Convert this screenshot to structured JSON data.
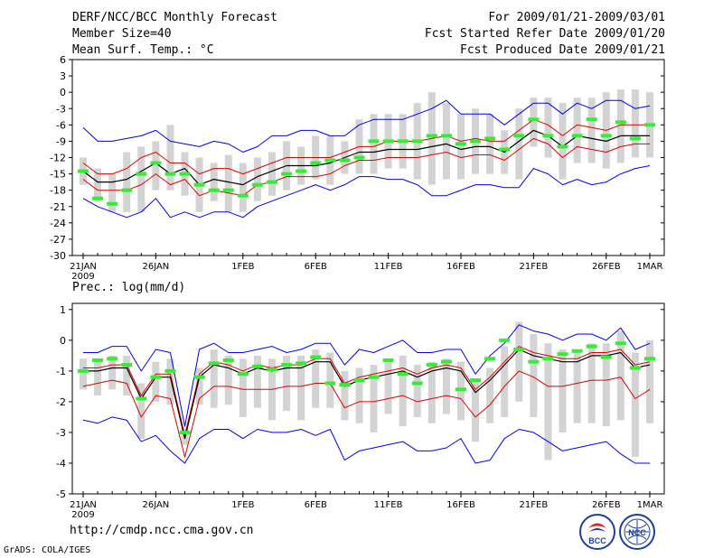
{
  "header": {
    "title": "DERF/NCC/BCC Monthly Forecast",
    "member_size": "Member Size=40",
    "variable": "Mean Surf. Temp.: °C",
    "period": "For 2009/01/21-2009/03/01",
    "start_date": "Fcst Started Refer Date 2009/01/20",
    "produced_date": "Fcst Produced Date 2009/01/21"
  },
  "footer": {
    "url": "http://cmdp.ncc.cma.gov.cn",
    "credit": "GrADS: COLA/IGES",
    "logo_bcc_text": "BCC",
    "logo_ncc_text": "NCC"
  },
  "colors": {
    "envelope": "#0000ee",
    "quartile": "#e00000",
    "mean": "#000000",
    "box": "#d3d3d3",
    "median": "#33ee33"
  },
  "chart_data": [
    {
      "type": "line",
      "title": "Mean Surf. Temp.: °C",
      "year_label": "2009",
      "ylim": [
        -30,
        6
      ],
      "yticks": [
        6,
        3,
        0,
        -3,
        -6,
        -9,
        -12,
        -15,
        -18,
        -21,
        -24,
        -27,
        -30
      ],
      "xtick_labels": [
        {
          "day": 0,
          "label": "21JAN"
        },
        {
          "day": 5,
          "label": "26JAN"
        },
        {
          "day": 11,
          "label": "1FEB"
        },
        {
          "day": 16,
          "label": "6FEB"
        },
        {
          "day": 21,
          "label": "11FEB"
        },
        {
          "day": 26,
          "label": "16FEB"
        },
        {
          "day": 31,
          "label": "21FEB"
        },
        {
          "day": 36,
          "label": "26FEB"
        },
        {
          "day": 39,
          "label": "1MAR"
        }
      ],
      "series": [
        {
          "name": "max",
          "values": [
            -6.5,
            -9,
            -9,
            -8.5,
            -8,
            -7,
            -9,
            -9.5,
            -10,
            -9,
            -9.5,
            -11,
            -10,
            -8,
            -8,
            -7,
            -7,
            -8,
            -8,
            -6,
            -5,
            -5,
            -5,
            -4,
            -3,
            -1.5,
            -4,
            -4,
            -4,
            -6,
            -4,
            -2,
            -2,
            -4,
            -2,
            -3,
            -1.5,
            -1.5,
            -3,
            -2.5
          ]
        },
        {
          "name": "q_upper",
          "values": [
            -13,
            -15,
            -15,
            -14,
            -12,
            -11,
            -13,
            -13,
            -15,
            -14,
            -14,
            -15,
            -14,
            -13,
            -12,
            -12,
            -12,
            -12,
            -11,
            -10,
            -10,
            -9,
            -9,
            -9,
            -8.5,
            -8,
            -9,
            -8.5,
            -9,
            -9,
            -7,
            -5,
            -6,
            -8,
            -6,
            -6.5,
            -7,
            -6,
            -6,
            -6
          ]
        },
        {
          "name": "mean",
          "values": [
            -14.5,
            -16.5,
            -16.5,
            -16,
            -14.5,
            -13,
            -15,
            -14,
            -17,
            -16,
            -16.5,
            -17,
            -15.5,
            -14.5,
            -13.5,
            -13.5,
            -13.5,
            -13,
            -12,
            -11,
            -11,
            -10.5,
            -10.5,
            -10.5,
            -10,
            -9.5,
            -10.5,
            -10,
            -10,
            -11,
            -9,
            -7,
            -8,
            -10,
            -8,
            -8.5,
            -9,
            -8,
            -8,
            -8
          ]
        },
        {
          "name": "q_lower",
          "values": [
            -16,
            -18,
            -18,
            -18,
            -17,
            -15,
            -17,
            -16,
            -19,
            -18,
            -18.5,
            -19,
            -17,
            -16.5,
            -15.5,
            -15.5,
            -15.5,
            -15,
            -13.5,
            -12.5,
            -12.5,
            -12,
            -12,
            -12,
            -11.5,
            -11,
            -12,
            -11.5,
            -11.5,
            -12.5,
            -10.5,
            -8.5,
            -9.5,
            -12,
            -10,
            -10.5,
            -11,
            -10,
            -9.5,
            -9.5
          ]
        },
        {
          "name": "min",
          "values": [
            -19.5,
            -21,
            -22,
            -23,
            -22,
            -19.5,
            -23,
            -22,
            -23,
            -22,
            -22,
            -23,
            -21,
            -20,
            -19,
            -18,
            -17,
            -18,
            -17,
            -15.5,
            -15.5,
            -16,
            -16,
            -17,
            -19,
            -19,
            -18,
            -17,
            -17,
            -17.5,
            -17.5,
            -14,
            -15,
            -17,
            -16,
            -17,
            -16.5,
            -15,
            -14,
            -13.5
          ]
        },
        {
          "name": "median",
          "values": [
            -14.5,
            -19.5,
            -20.5,
            -18,
            -15,
            -13,
            -15,
            -15,
            -17,
            -18,
            -18,
            -19,
            -17,
            -16.5,
            -15,
            -14.5,
            -13,
            -12.5,
            -12.5,
            -12,
            -9,
            -9,
            -9,
            -9,
            -8,
            -8,
            -9.5,
            -9,
            -8.5,
            -10.5,
            -8,
            -5,
            -8,
            -10,
            -8,
            -5,
            -8,
            -5.5,
            -8.5,
            -6
          ]
        },
        {
          "name": "box_top",
          "values": [
            -12,
            -14,
            -15,
            -11,
            -10,
            -9,
            -6,
            -11,
            -12,
            -13,
            -11.5,
            -13,
            -12,
            -11,
            -9,
            -10,
            -8,
            -8,
            -9,
            -5,
            -4,
            -4,
            -4,
            -2,
            0,
            -2,
            -4,
            -3,
            -4,
            -7,
            -3,
            -1,
            -1,
            -2,
            -1,
            -1,
            0,
            0.5,
            0.5,
            0
          ]
        },
        {
          "name": "box_bottom",
          "values": [
            -17,
            -20,
            -22,
            -22,
            -22,
            -18,
            -18,
            -19,
            -22,
            -20,
            -22,
            -22,
            -20,
            -19,
            -18,
            -17,
            -16,
            -17,
            -15,
            -15,
            -15,
            -14,
            -14,
            -16,
            -17,
            -16,
            -16,
            -15,
            -15,
            -15,
            -16,
            -10,
            -12,
            -16,
            -13,
            -13,
            -14,
            -13,
            -12,
            -12
          ]
        }
      ]
    },
    {
      "type": "line",
      "title": "Prec.: log(mm/d)",
      "year_label": "2009",
      "ylim": [
        -5,
        1.2
      ],
      "yticks": [
        1,
        0,
        -1,
        -2,
        -3,
        -4,
        -5
      ],
      "xtick_labels": [
        {
          "day": 0,
          "label": "21JAN"
        },
        {
          "day": 5,
          "label": "26JAN"
        },
        {
          "day": 11,
          "label": "1FEB"
        },
        {
          "day": 16,
          "label": "6FEB"
        },
        {
          "day": 21,
          "label": "11FEB"
        },
        {
          "day": 26,
          "label": "16FEB"
        },
        {
          "day": 31,
          "label": "21FEB"
        },
        {
          "day": 36,
          "label": "26FEB"
        },
        {
          "day": 39,
          "label": "1MAR"
        }
      ],
      "series": [
        {
          "name": "max",
          "values": [
            -0.4,
            -0.4,
            -0.2,
            -0.2,
            -1.0,
            -0.3,
            -0.4,
            -2.8,
            -0.3,
            -0.1,
            -0.4,
            -0.4,
            -0.3,
            -0.2,
            -0.4,
            -0.3,
            -0.1,
            -0.1,
            -0.8,
            -0.3,
            -0.4,
            -0.2,
            0,
            -0.4,
            -0.4,
            -0.3,
            -0.3,
            -1.1,
            -0.5,
            -0.1,
            0.5,
            0.3,
            0.2,
            0,
            0.2,
            0.2,
            0,
            0.4,
            -0.3,
            -0.1
          ]
        },
        {
          "name": "q_upper",
          "values": [
            -0.9,
            -0.9,
            -0.8,
            -0.8,
            -1.8,
            -1.1,
            -1.1,
            -3.1,
            -1.1,
            -0.7,
            -0.8,
            -1.0,
            -0.8,
            -0.9,
            -0.8,
            -0.8,
            -0.6,
            -0.6,
            -1.4,
            -1.2,
            -1.1,
            -1.0,
            -0.9,
            -1.1,
            -0.9,
            -0.8,
            -0.9,
            -1.6,
            -1.2,
            -0.7,
            -0.2,
            -0.4,
            -0.5,
            -0.6,
            -0.6,
            -0.4,
            -0.4,
            -0.3,
            -0.8,
            -0.7
          ]
        },
        {
          "name": "mean",
          "values": [
            -1.0,
            -1.0,
            -0.9,
            -0.9,
            -1.9,
            -1.2,
            -1.2,
            -3.2,
            -1.2,
            -0.8,
            -0.9,
            -1.1,
            -0.9,
            -1.0,
            -0.9,
            -0.9,
            -0.7,
            -0.7,
            -1.5,
            -1.3,
            -1.2,
            -1.1,
            -1.0,
            -1.2,
            -1.0,
            -0.9,
            -1.0,
            -1.7,
            -1.3,
            -0.8,
            -0.3,
            -0.5,
            -0.6,
            -0.7,
            -0.7,
            -0.5,
            -0.5,
            -0.4,
            -0.9,
            -0.8
          ]
        },
        {
          "name": "q_lower",
          "values": [
            -1.5,
            -1.4,
            -1.3,
            -1.4,
            -2.5,
            -1.8,
            -1.9,
            -3.8,
            -1.9,
            -1.5,
            -1.5,
            -1.6,
            -1.6,
            -1.6,
            -1.5,
            -1.5,
            -1.4,
            -1.4,
            -2.2,
            -2.0,
            -2.0,
            -1.9,
            -1.8,
            -2.0,
            -1.9,
            -1.8,
            -1.9,
            -2.5,
            -2.1,
            -1.5,
            -1.0,
            -1.2,
            -1.5,
            -1.5,
            -1.4,
            -1.3,
            -1.3,
            -1.2,
            -1.9,
            -1.6
          ]
        },
        {
          "name": "min",
          "values": [
            -2.6,
            -2.7,
            -2.5,
            -2.6,
            -3.3,
            -3.1,
            -3.6,
            -4.0,
            -3.2,
            -2.9,
            -2.9,
            -3.2,
            -2.9,
            -3.0,
            -3.0,
            -2.9,
            -3.1,
            -2.9,
            -3.9,
            -3.6,
            -3.5,
            -3.4,
            -3.3,
            -3.6,
            -3.6,
            -3.5,
            -3.2,
            -4.0,
            -3.9,
            -3.2,
            -2.9,
            -3.0,
            -3.3,
            -3.6,
            -3.5,
            -3.4,
            -3.3,
            -3.7,
            -4.0,
            -4.0
          ]
        },
        {
          "name": "median",
          "values": [
            -1.0,
            -0.65,
            -0.6,
            -0.8,
            -1.9,
            -1.2,
            -1.0,
            -3.0,
            -1.2,
            -0.75,
            -0.65,
            -1.1,
            -0.85,
            -0.95,
            -0.8,
            -0.75,
            -0.55,
            -1.4,
            -1.45,
            -1.3,
            -1.2,
            -0.65,
            -1.1,
            -1.4,
            -0.8,
            -0.7,
            -1.6,
            -1.3,
            -0.6,
            0,
            -0.3,
            -0.7,
            -0.6,
            -0.45,
            -0.35,
            -0.2,
            -0.55,
            -0.1,
            -0.9,
            -0.6
          ]
        },
        {
          "name": "box_top",
          "values": [
            -0.6,
            -0.6,
            -0.5,
            -0.5,
            -1.4,
            -0.7,
            -0.6,
            -2.9,
            -0.9,
            -0.3,
            -0.5,
            -0.6,
            -0.5,
            -0.6,
            -0.5,
            -0.5,
            -0.3,
            -0.4,
            -1.0,
            -0.9,
            -0.8,
            -0.6,
            -0.5,
            -0.8,
            -0.7,
            -0.6,
            -0.7,
            -1.3,
            -0.9,
            -0.2,
            0.6,
            0.2,
            -0.1,
            -0.3,
            -0.3,
            -0.1,
            -0.1,
            0.3,
            -0.4,
            0.0
          ]
        },
        {
          "name": "box_bottom",
          "values": [
            -1.6,
            -1.8,
            -1.6,
            -1.8,
            -3.2,
            -2.0,
            -2.1,
            -3.4,
            -2.1,
            -2.2,
            -2.1,
            -2.5,
            -2.2,
            -2.6,
            -2.3,
            -2.6,
            -2.2,
            -2.2,
            -2.6,
            -2.7,
            -3.0,
            -2.4,
            -2.8,
            -2.5,
            -2.7,
            -2.4,
            -2.6,
            -3.3,
            -2.7,
            -2.5,
            -2.0,
            -2.5,
            -3.9,
            -3.0,
            -2.7,
            -2.7,
            -2.8,
            -2.6,
            -3.8,
            -2.7
          ]
        }
      ]
    }
  ]
}
